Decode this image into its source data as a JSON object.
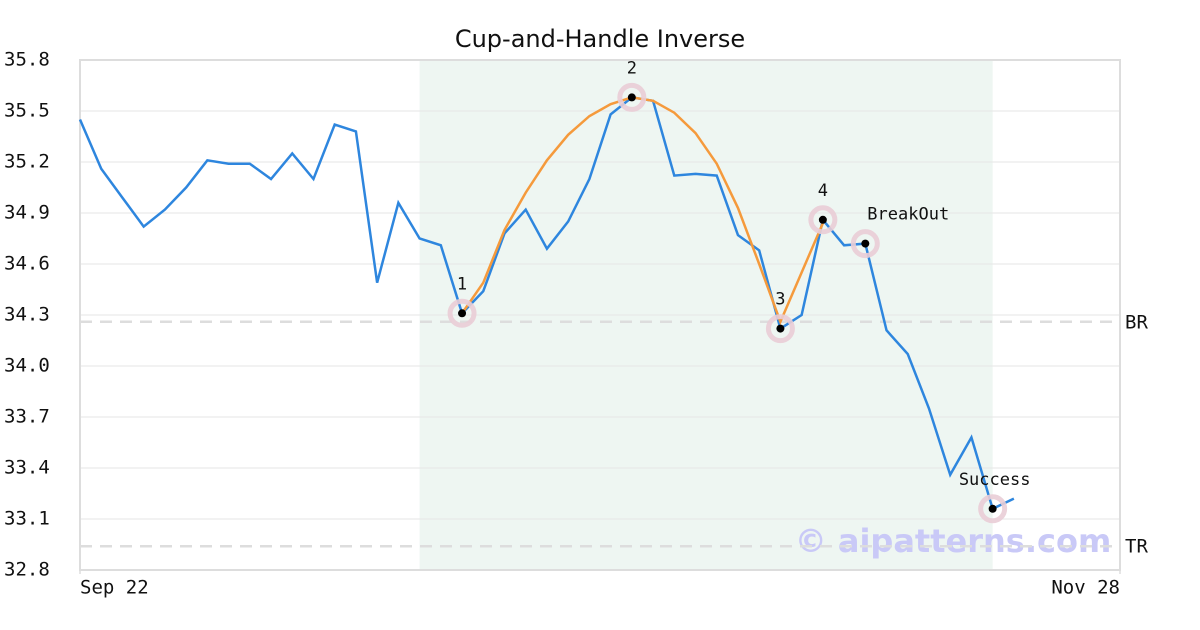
{
  "chart_data": {
    "type": "line",
    "title": "Cup-and-Handle Inverse",
    "x": [
      0,
      1,
      2,
      3,
      4,
      5,
      6,
      7,
      8,
      9,
      10,
      11,
      12,
      13,
      14,
      15,
      16,
      17,
      18,
      19,
      20,
      21,
      22,
      23,
      24,
      25,
      26,
      27,
      28,
      29,
      30,
      31,
      32,
      33,
      34,
      35,
      36,
      37,
      38,
      39,
      40,
      41,
      42,
      43,
      44
    ],
    "series": [
      {
        "color": "#2e86de",
        "values": [
          35.45,
          35.16,
          34.99,
          34.82,
          34.92,
          35.05,
          35.21,
          35.19,
          35.19,
          35.1,
          35.25,
          35.1,
          35.42,
          35.38,
          34.49,
          34.96,
          34.75,
          34.71,
          34.31,
          34.44,
          34.78,
          34.92,
          34.69,
          34.85,
          35.1,
          35.48,
          35.58,
          35.56,
          35.12,
          35.13,
          35.12,
          34.77,
          34.68,
          34.22,
          34.3,
          34.86,
          34.71,
          34.72,
          34.21,
          34.07,
          33.75,
          33.36,
          33.58,
          33.16,
          33.22
        ]
      },
      {
        "color": "#f59a3c",
        "values": [
          null,
          null,
          null,
          null,
          null,
          null,
          null,
          null,
          null,
          null,
          null,
          null,
          null,
          null,
          null,
          null,
          null,
          null,
          34.31,
          34.49,
          34.8,
          35.02,
          35.21,
          35.36,
          35.47,
          35.54,
          35.58,
          35.56,
          35.49,
          35.37,
          35.19,
          34.93,
          34.6,
          34.26,
          34.55,
          34.84,
          null,
          null,
          null,
          null,
          null,
          null,
          null,
          null,
          null
        ]
      }
    ],
    "points": [
      {
        "label": "1",
        "x": 18,
        "y": 34.31
      },
      {
        "label": "2",
        "x": 26,
        "y": 35.58
      },
      {
        "label": "3",
        "x": 33,
        "y": 34.22
      },
      {
        "label": "4",
        "x": 35,
        "y": 34.86
      },
      {
        "label": "BreakOut",
        "x": 37,
        "y": 34.72
      },
      {
        "label": "Success",
        "x": 43,
        "y": 33.16
      }
    ],
    "levels": [
      {
        "label": "BR",
        "value": 34.26
      },
      {
        "label": "TR",
        "value": 32.94
      }
    ],
    "shade": {
      "x": [
        16,
        43
      ],
      "color": "#eef6f2"
    },
    "watermark": "© aipatterns.com",
    "xlim": [
      0,
      49
    ],
    "xticks": [
      {
        "value": 0,
        "label": "Sep 22"
      },
      {
        "value": 49,
        "label": "Nov 28"
      }
    ],
    "ylim": [
      32.8,
      35.8
    ],
    "yticks": [
      {
        "value": 32.8,
        "label": "32.8"
      },
      33.1,
      33.4,
      33.7,
      {
        "value": 34.0,
        "label": "34.0"
      },
      34.3,
      34.6,
      34.9,
      35.2,
      35.5,
      35.8
    ],
    "grid": true
  }
}
